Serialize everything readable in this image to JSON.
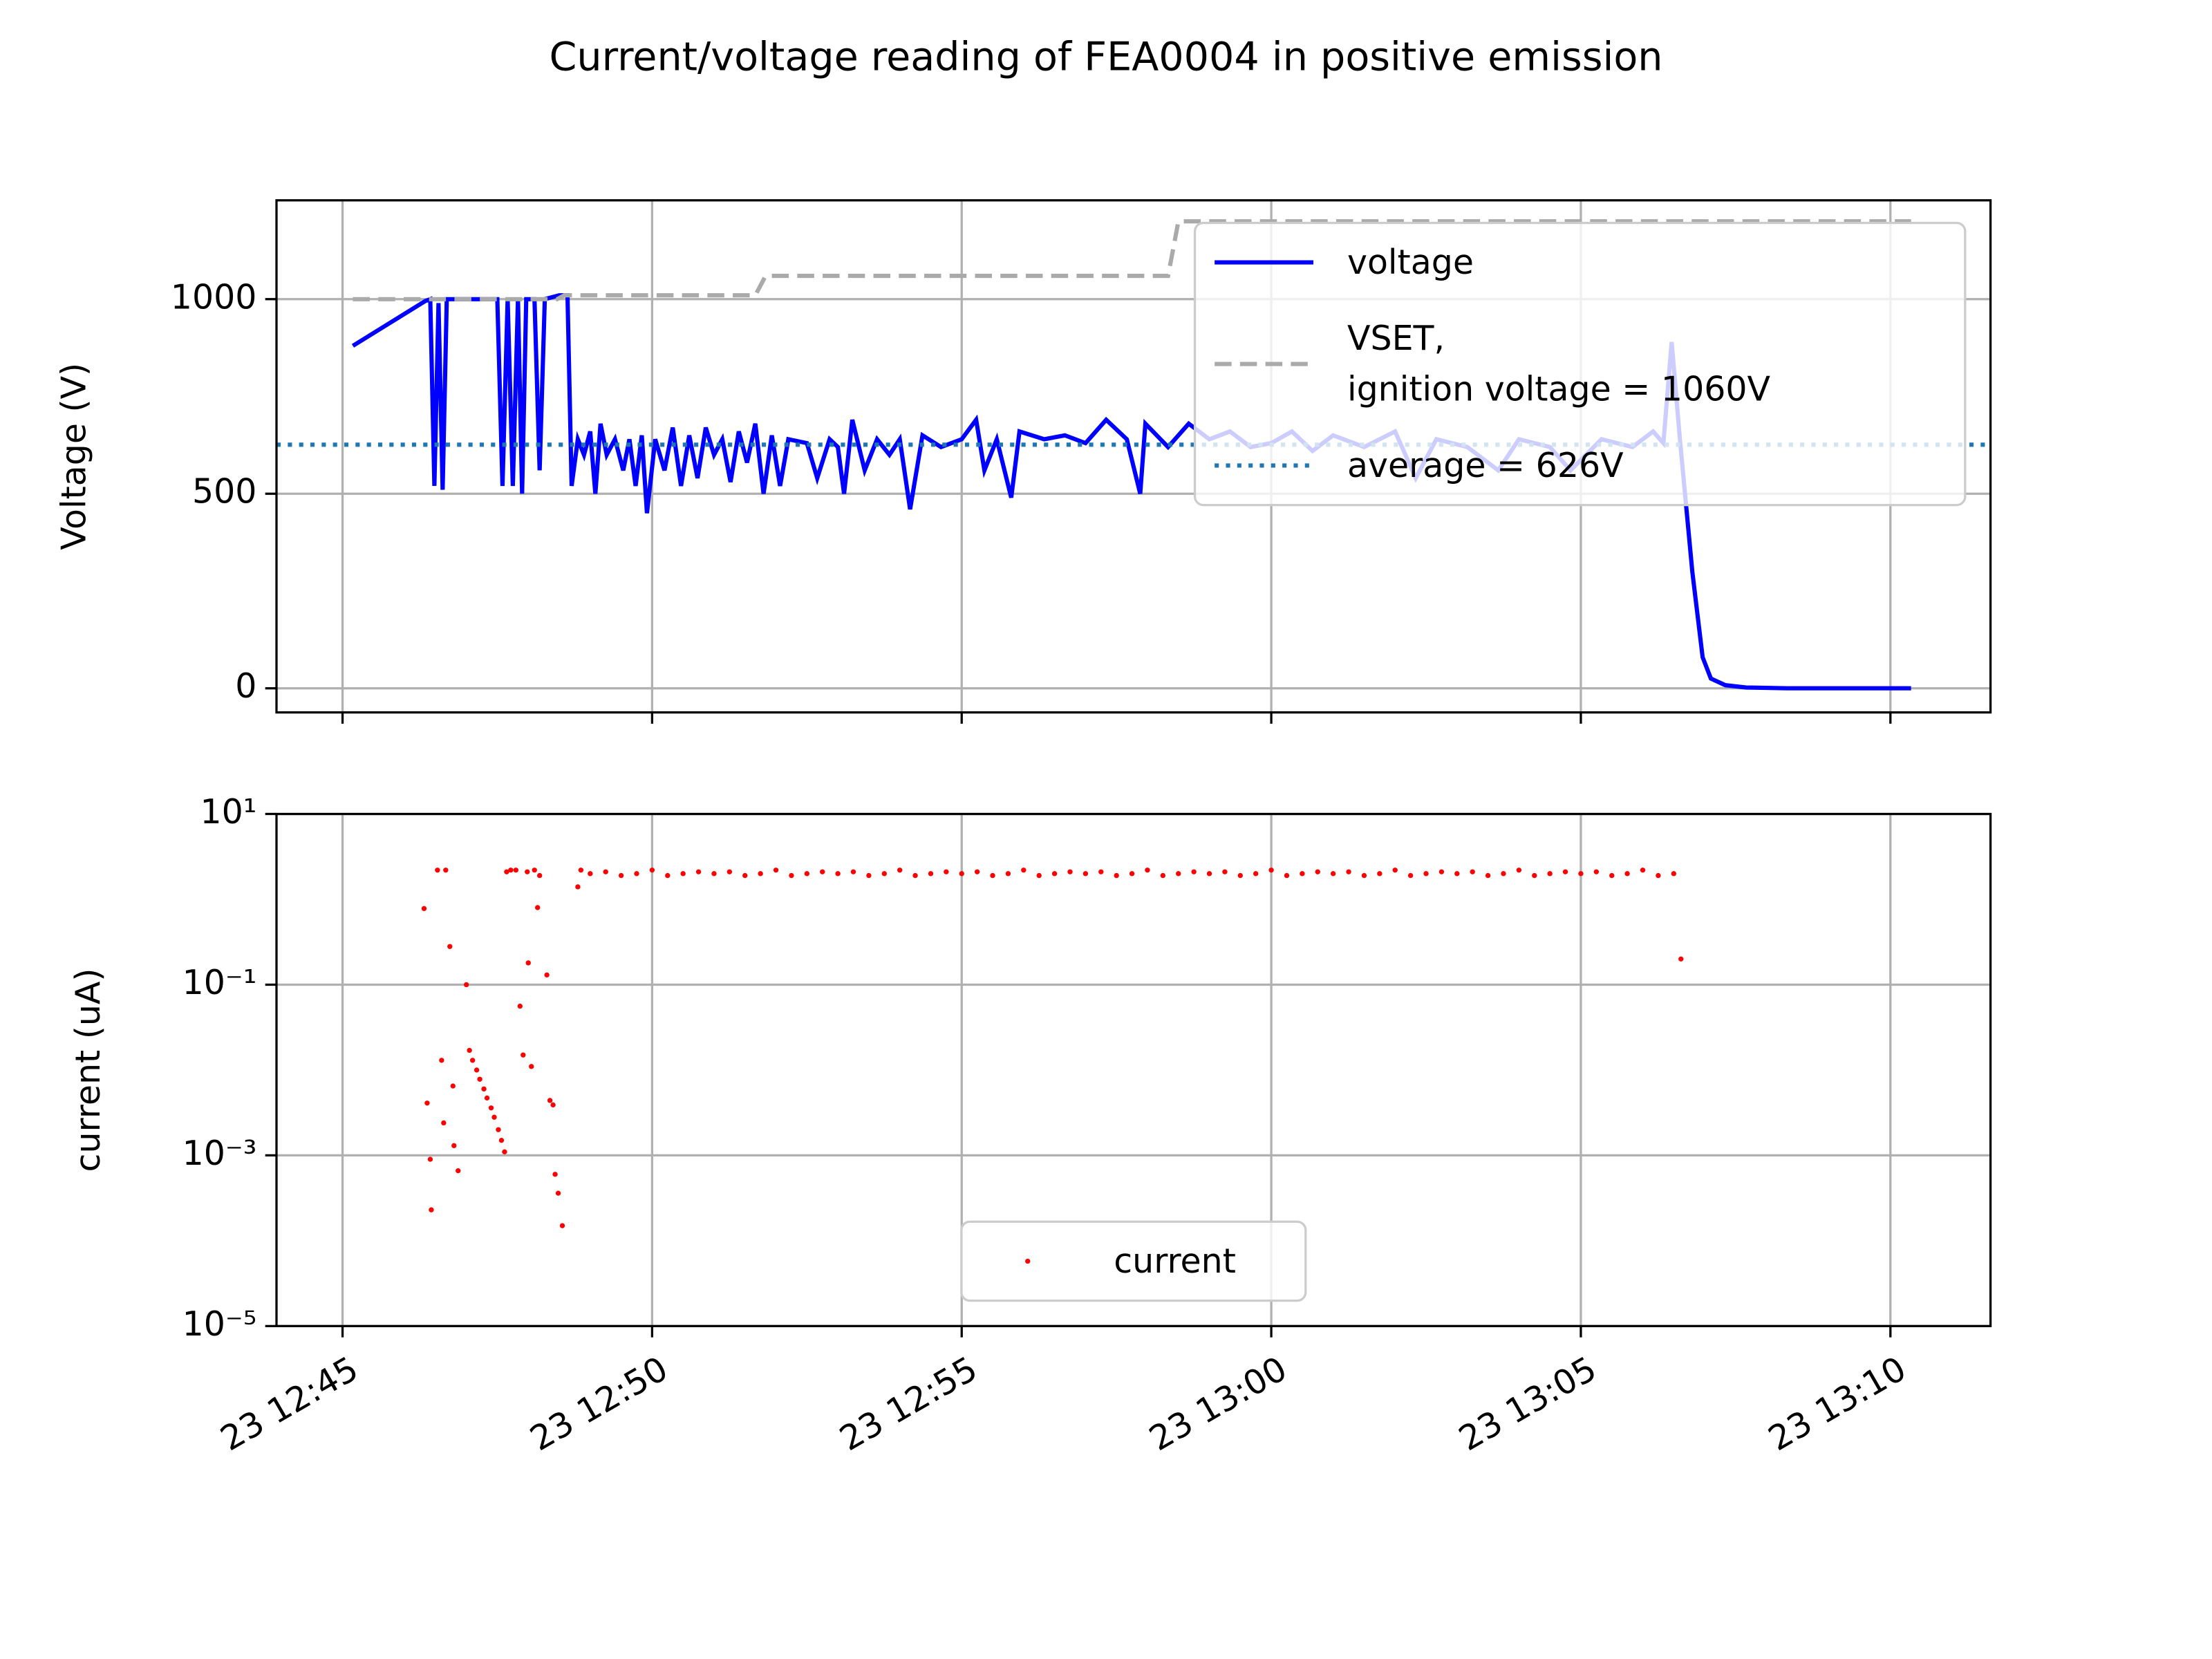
{
  "title": "Current/voltage reading of FEA0004 in positive emission",
  "chart_data": [
    {
      "type": "line",
      "ylabel": "Voltage (V)",
      "xlim": [
        "23 12:43:56",
        "23 13:11:37"
      ],
      "xticks": [
        "23 12:45",
        "23 12:50",
        "23 12:55",
        "23 13:00",
        "23 13:05",
        "23 13:10"
      ],
      "xticklabels": false,
      "ylim": [
        -62,
        1254
      ],
      "yticks": [
        0,
        500,
        1000
      ],
      "grid": true,
      "legend": "upper right",
      "series": [
        {
          "name": "voltage",
          "color": "#0000ff",
          "linestyle": "solid",
          "x": [
            "23 12:45:10",
            "23 12:46:20",
            "23 12:46:25",
            "23 12:46:29",
            "23 12:46:33",
            "23 12:46:37",
            "23 12:46:41",
            "23 12:47:30",
            "23 12:47:35",
            "23 12:47:40",
            "23 12:47:45",
            "23 12:47:50",
            "23 12:47:54",
            "23 12:47:58",
            "23 12:48:06",
            "23 12:48:11",
            "23 12:48:16",
            "23 12:48:30",
            "23 12:48:38",
            "23 12:48:42",
            "23 12:48:48",
            "23 12:48:54",
            "23 12:49:00",
            "23 12:49:05",
            "23 12:49:10",
            "23 12:49:16",
            "23 12:49:24",
            "23 12:49:32",
            "23 12:49:38",
            "23 12:49:44",
            "23 12:49:50",
            "23 12:49:55",
            "23 12:50:03",
            "23 12:50:12",
            "23 12:50:20",
            "23 12:50:28",
            "23 12:50:36",
            "23 12:50:44",
            "23 12:50:52",
            "23 12:51:00",
            "23 12:51:08",
            "23 12:51:16",
            "23 12:51:24",
            "23 12:51:32",
            "23 12:51:40",
            "23 12:51:48",
            "23 12:51:56",
            "23 12:52:04",
            "23 12:52:12",
            "23 12:52:30",
            "23 12:52:40",
            "23 12:52:52",
            "23 12:53:00",
            "23 12:53:06",
            "23 12:53:14",
            "23 12:53:26",
            "23 12:53:38",
            "23 12:53:50",
            "23 12:54:00",
            "23 12:54:10",
            "23 12:54:22",
            "23 12:54:40",
            "23 12:55:00",
            "23 12:55:14",
            "23 12:55:22",
            "23 12:55:34",
            "23 12:55:48",
            "23 12:55:56",
            "23 12:56:20",
            "23 12:56:40",
            "23 12:57:00",
            "23 12:57:20",
            "23 12:57:40",
            "23 12:57:53",
            "23 12:57:58",
            "23 12:58:20",
            "23 12:58:40",
            "23 12:59:00",
            "23 12:59:20",
            "23 12:59:40",
            "23 13:00:00",
            "23 13:00:20",
            "23 13:00:40",
            "23 13:01:00",
            "23 13:01:30",
            "23 13:02:00",
            "23 13:02:20",
            "23 13:02:40",
            "23 13:03:10",
            "23 13:03:40",
            "23 13:04:00",
            "23 13:04:30",
            "23 13:04:50",
            "23 13:05:20",
            "23 13:05:50",
            "23 13:06:10",
            "23 13:06:20",
            "23 13:06:28",
            "23 13:06:36",
            "23 13:06:48",
            "23 13:06:58",
            "23 13:07:06",
            "23 13:07:20",
            "23 13:07:40",
            "23 13:08:20",
            "23 13:10:20"
          ],
          "values": [
            880,
            995,
            1000,
            520,
            990,
            510,
            1000,
            1000,
            520,
            1000,
            520,
            1000,
            500,
            1000,
            1000,
            560,
            1000,
            1010,
            1010,
            520,
            640,
            600,
            660,
            500,
            680,
            600,
            640,
            560,
            640,
            520,
            650,
            450,
            640,
            560,
            670,
            520,
            650,
            540,
            670,
            600,
            640,
            530,
            660,
            580,
            680,
            500,
            650,
            520,
            640,
            630,
            540,
            640,
            620,
            500,
            690,
            560,
            640,
            600,
            640,
            460,
            650,
            620,
            640,
            690,
            560,
            640,
            490,
            660,
            640,
            650,
            630,
            690,
            640,
            500,
            680,
            620,
            680,
            640,
            660,
            620,
            630,
            660,
            610,
            650,
            620,
            660,
            540,
            640,
            620,
            560,
            640,
            620,
            560,
            640,
            620,
            660,
            630,
            890,
            640,
            300,
            80,
            25,
            8,
            2,
            0,
            0
          ]
        },
        {
          "name": "VSET,\nignition voltage = 1060V",
          "color": "#aaaaaa",
          "linestyle": "dashed",
          "x": [
            "23 12:45:10",
            "23 12:48:28",
            "23 12:48:35",
            "23 12:51:40",
            "23 12:51:50",
            "23 12:58:20",
            "23 12:58:30",
            "23 13:10:20"
          ],
          "values": [
            1000,
            1000,
            1010,
            1010,
            1060,
            1060,
            1200,
            1200
          ]
        }
      ],
      "hlines": [
        {
          "name": "average = 626V",
          "value": 626,
          "color": "#1f77b4",
          "linestyle": "dotted"
        }
      ]
    },
    {
      "type": "scatter",
      "ylabel": "current (uA)",
      "log": true,
      "xlim": [
        "23 12:43:56",
        "23 13:11:37"
      ],
      "xticks": [
        "23 12:45",
        "23 12:50",
        "23 12:55",
        "23 13:00",
        "23 13:05",
        "23 13:10"
      ],
      "xticklabels": true,
      "ylim": [
        1e-05,
        10
      ],
      "yticks": [
        {
          "value": 1e-05,
          "label": "10⁻⁵"
        },
        {
          "value": 0.001,
          "label": "10⁻³"
        },
        {
          "value": 0.1,
          "label": "10⁻¹"
        },
        {
          "value": 10,
          "label": "10¹"
        }
      ],
      "grid": true,
      "legend": "lower center",
      "series": [
        {
          "name": "current",
          "color": "#ff0000",
          "x": [
            "23 12:46:19",
            "23 12:46:22",
            "23 12:46:25",
            "23 12:46:26",
            "23 12:46:32",
            "23 12:46:36",
            "23 12:46:38",
            "23 12:46:40",
            "23 12:46:44",
            "23 12:46:47",
            "23 12:46:48",
            "23 12:46:52",
            "23 12:47:00",
            "23 12:47:03",
            "23 12:47:06",
            "23 12:47:10",
            "23 12:47:13",
            "23 12:47:17",
            "23 12:47:20",
            "23 12:47:24",
            "23 12:47:27",
            "23 12:47:31",
            "23 12:47:34",
            "23 12:47:37",
            "23 12:47:39",
            "23 12:47:43",
            "23 12:47:48",
            "23 12:47:52",
            "23 12:47:55",
            "23 12:47:59",
            "23 12:48:00",
            "23 12:48:03",
            "23 12:48:06",
            "23 12:48:09",
            "23 12:48:11",
            "23 12:48:18",
            "23 12:48:21",
            "23 12:48:24",
            "23 12:48:26",
            "23 12:48:29",
            "23 12:48:33",
            "23 12:48:48",
            "23 12:48:51",
            "23 12:49:00",
            "23 12:49:15",
            "23 12:49:30",
            "23 12:49:45",
            "23 12:50:00",
            "23 12:50:15",
            "23 12:50:30",
            "23 12:50:45",
            "23 12:51:00",
            "23 12:51:15",
            "23 12:51:30",
            "23 12:51:45",
            "23 12:52:00",
            "23 12:52:15",
            "23 12:52:30",
            "23 12:52:45",
            "23 12:53:00",
            "23 12:53:15",
            "23 12:53:30",
            "23 12:53:45",
            "23 12:54:00",
            "23 12:54:15",
            "23 12:54:30",
            "23 12:54:45",
            "23 12:55:00",
            "23 12:55:15",
            "23 12:55:30",
            "23 12:55:45",
            "23 12:56:00",
            "23 12:56:15",
            "23 12:56:30",
            "23 12:56:45",
            "23 12:57:00",
            "23 12:57:15",
            "23 12:57:30",
            "23 12:57:45",
            "23 12:58:00",
            "23 12:58:15",
            "23 12:58:30",
            "23 12:58:45",
            "23 12:59:00",
            "23 12:59:15",
            "23 12:59:30",
            "23 12:59:45",
            "23 13:00:00",
            "23 13:00:15",
            "23 13:00:30",
            "23 13:00:45",
            "23 13:01:00",
            "23 13:01:15",
            "23 13:01:30",
            "23 13:01:45",
            "23 13:02:00",
            "23 13:02:15",
            "23 13:02:30",
            "23 13:02:45",
            "23 13:03:00",
            "23 13:03:15",
            "23 13:03:30",
            "23 13:03:45",
            "23 13:04:00",
            "23 13:04:15",
            "23 13:04:30",
            "23 13:04:45",
            "23 13:05:00",
            "23 13:05:15",
            "23 13:05:30",
            "23 13:05:45",
            "23 13:06:00",
            "23 13:06:15",
            "23 13:06:30",
            "23 13:06:37"
          ],
          "values": [
            0.78,
            0.0041,
            0.0009,
            0.00023,
            2.2,
            0.013,
            0.0024,
            2.2,
            0.28,
            0.0065,
            0.0013,
            0.00066,
            0.1,
            0.017,
            0.013,
            0.01,
            0.0078,
            0.006,
            0.0047,
            0.0036,
            0.0028,
            0.002,
            0.0015,
            0.0011,
            2.1,
            2.2,
            2.2,
            0.056,
            0.015,
            2.1,
            0.18,
            0.011,
            2.2,
            0.8,
            1.9,
            0.13,
            0.0044,
            0.0039,
            0.0006,
            0.00036,
            0.00015,
            1.4,
            2.2,
            2.0,
            2.1,
            1.9,
            2.0,
            2.2,
            1.9,
            2.0,
            2.1,
            2.0,
            2.1,
            1.9,
            2.0,
            2.2,
            1.9,
            2.0,
            2.1,
            2.0,
            2.1,
            1.9,
            2.0,
            2.2,
            1.9,
            2.0,
            2.1,
            2.0,
            2.1,
            1.9,
            2.0,
            2.2,
            1.9,
            2.0,
            2.1,
            2.0,
            2.1,
            1.9,
            2.0,
            2.2,
            1.9,
            2.0,
            2.1,
            2.0,
            2.1,
            1.9,
            2.0,
            2.2,
            1.9,
            2.0,
            2.1,
            2.0,
            2.1,
            1.9,
            2.0,
            2.2,
            1.9,
            2.0,
            2.1,
            2.0,
            2.1,
            1.9,
            2.0,
            2.2,
            1.9,
            2.0,
            2.1,
            2.0,
            2.1,
            1.9,
            2.0,
            2.2,
            1.9,
            2.0,
            0.2
          ]
        }
      ]
    }
  ]
}
